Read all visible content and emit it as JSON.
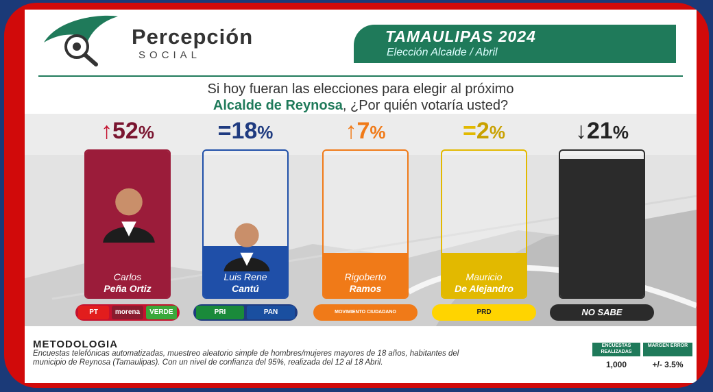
{
  "header": {
    "brand_name": "Percepción",
    "brand_sub": "SOCIAL",
    "banner_title": "TAMAULIPAS 2024",
    "banner_subtitle": "Elección Alcalde   /      Abril"
  },
  "question": {
    "line1": "Si hoy fueran las elecciones para elegir al próximo",
    "line2_highlight": "Alcalde de Reynosa",
    "line2_rest": ", ¿Por quién votaría usted?"
  },
  "colors": {
    "brand_green": "#1f7a5a",
    "pena_ortiz": "#9b1c3a",
    "cantu": "#1f4fa8",
    "ramos": "#f07a18",
    "de_alejandro": "#e2b900",
    "no_sabe": "#2b2b2b",
    "frame_red": "#d10a0a"
  },
  "chart_data": {
    "type": "bar",
    "categories": [
      "Carlos Peña Ortiz",
      "Luis Rene Cantú",
      "Rigoberto Ramos",
      "Mauricio De Alejandro",
      "NO SABE"
    ],
    "values": [
      52,
      18,
      7,
      2,
      21
    ],
    "unit": "%",
    "trend": [
      "up",
      "equal",
      "up",
      "equal",
      "down"
    ],
    "ylim": [
      0,
      52
    ]
  },
  "candidates": [
    {
      "first": "Carlos",
      "last": "Peña Ortiz",
      "pct": "52",
      "sym": "↑",
      "trend_color": "#c4122f",
      "pct_color": "#7a1530",
      "bar_color": "#9b1c3a",
      "parties": [
        "PT",
        "morena",
        "VERDE"
      ]
    },
    {
      "first": "Luis Rene",
      "last": "Cantú",
      "pct": "18",
      "sym": "=",
      "trend_color": "#1f3b80",
      "pct_color": "#1f3b80",
      "bar_color": "#1f4fa8",
      "parties": [
        "PRI",
        "PAN"
      ]
    },
    {
      "first": "Rigoberto",
      "last": "Ramos",
      "pct": "7",
      "sym": "↑",
      "trend_color": "#f07a18",
      "pct_color": "#f07a18",
      "bar_color": "#f07a18",
      "parties": [
        "MOVIMIENTO CIUDADANO"
      ]
    },
    {
      "first": "Mauricio",
      "last": "De Alejandro",
      "pct": "2",
      "sym": "=",
      "trend_color": "#e2b900",
      "pct_color": "#c9a100",
      "bar_color": "#e2b900",
      "parties": [
        "PRD"
      ]
    },
    {
      "first": "",
      "last": "",
      "pct": "21",
      "sym": "↓",
      "trend_color": "#222222",
      "pct_color": "#222222",
      "bar_color": "#2b2b2b",
      "parties": [
        "NO SABE"
      ]
    }
  ],
  "methodology": {
    "title": "METODOLOGIA",
    "text": "Encuestas telefónicas automatizadas, muestreo aleatorio simple de hombres/mujeres mayores de 18 años, habitantes del municipio de Reynosa (Tamaulipas). Con un nivel de confianza del 95%, realizada del 12 al 18 Abril.",
    "col1_header": "ENCUESTAS REALIZADAS",
    "col2_header": "MARGEN ERROR",
    "col1_value": "1,000",
    "col2_value": "+/- 3.5%"
  }
}
